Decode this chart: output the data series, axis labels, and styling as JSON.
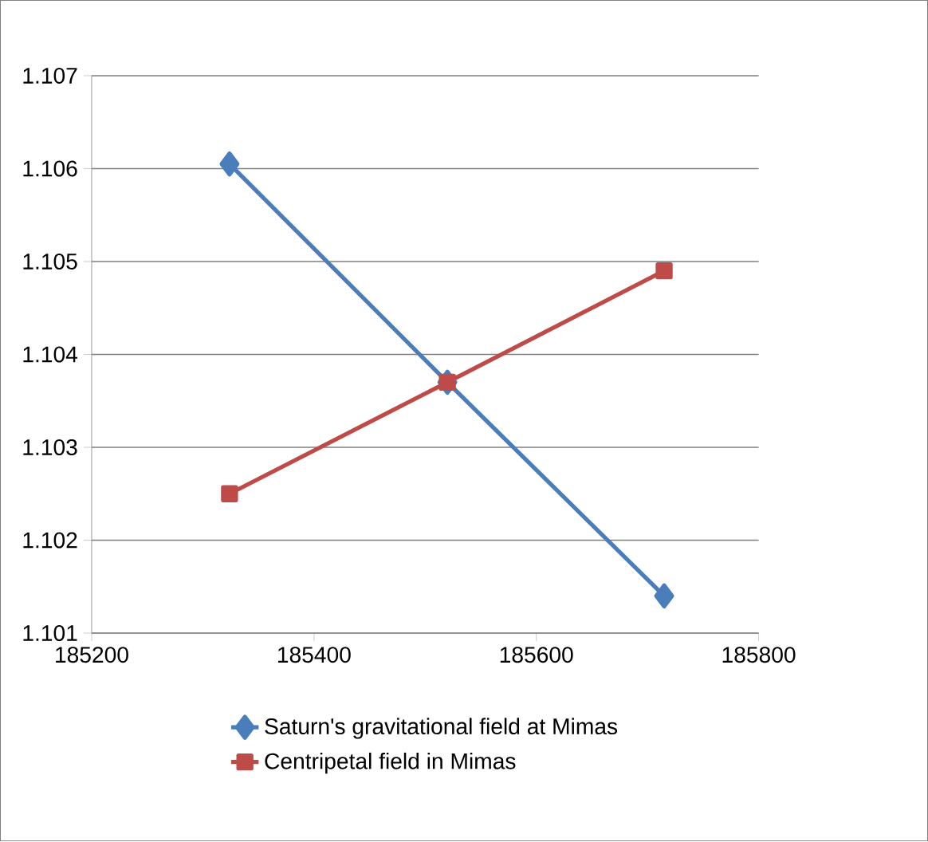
{
  "chart_data": {
    "type": "line",
    "x": [
      185324,
      185520,
      185715
    ],
    "series": [
      {
        "name": "Saturn's gravitational field at Mimas",
        "color": "#4a7ebb",
        "values": [
          1.10605,
          1.1037,
          1.1014
        ],
        "marker": "diamond"
      },
      {
        "name": "Centripetal field in Mimas",
        "color": "#be4b48",
        "values": [
          1.1025,
          1.1037,
          1.1049
        ],
        "marker": "square"
      }
    ],
    "xlim": [
      185200,
      185800
    ],
    "xticks": [
      185200,
      185400,
      185600,
      185800
    ],
    "ylim": [
      1.101,
      1.107
    ],
    "yticks": [
      1.101,
      1.102,
      1.103,
      1.104,
      1.105,
      1.106,
      1.107
    ],
    "grid": "y",
    "legend": "bottom"
  }
}
